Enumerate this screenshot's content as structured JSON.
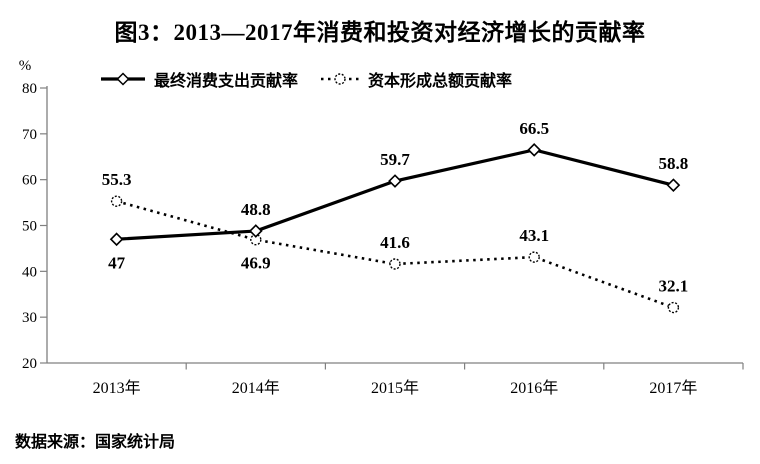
{
  "title": "图3：2013—2017年消费和投资对经济增长的贡献率",
  "source_note": "数据来源：国家统计局",
  "chart_data": {
    "type": "line",
    "title": "图3：2013—2017年消费和投资对经济增长的贡献率",
    "categories": [
      "2013年",
      "2014年",
      "2015年",
      "2016年",
      "2017年"
    ],
    "series": [
      {
        "name": "最终消费支出贡献率",
        "values": [
          47,
          48.8,
          59.7,
          66.5,
          58.8
        ],
        "line_style": "solid",
        "marker": "diamond",
        "color": "#000000",
        "label_positions": [
          "below",
          "above",
          "above",
          "above",
          "above"
        ]
      },
      {
        "name": "资本形成总额贡献率",
        "values": [
          55.3,
          46.9,
          41.6,
          43.1,
          32.1
        ],
        "line_style": "dotted",
        "marker": "circle",
        "color": "#000000",
        "label_positions": [
          "above",
          "below",
          "above",
          "above",
          "above"
        ]
      }
    ],
    "xlabel": "",
    "ylabel": "%",
    "ylim": [
      20,
      80
    ],
    "yticks": [
      20,
      30,
      40,
      50,
      60,
      70,
      80
    ],
    "grid": false,
    "legend_position": "top",
    "axis_color": "#808080"
  }
}
